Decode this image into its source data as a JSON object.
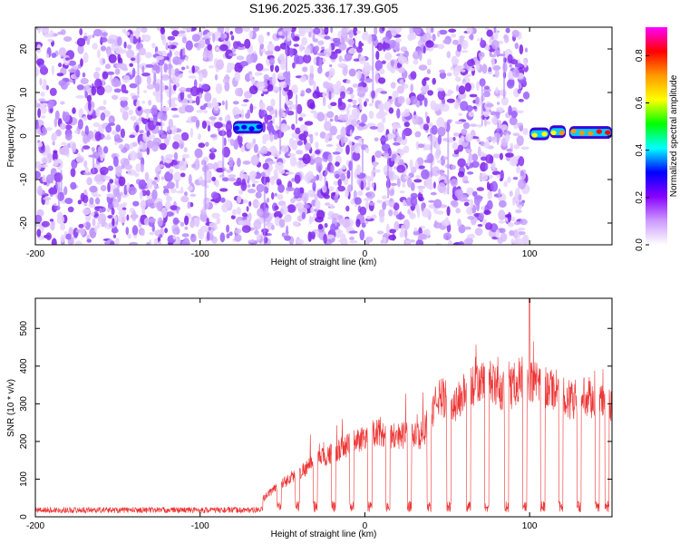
{
  "figure_title": "S196.2025.336.17.39.G05",
  "chart_data": [
    {
      "type": "heatmap",
      "name": "spectrogram",
      "xlabel": "Height of straight line (km)",
      "ylabel": "Frequency (Hz)",
      "xlim": [
        -200,
        150
      ],
      "ylim": [
        -25,
        25
      ],
      "xticks": [
        -200,
        -100,
        0,
        100
      ],
      "yticks": [
        -20,
        -10,
        0,
        10,
        20
      ],
      "colorbar": {
        "label": "Normalized spectral amplitude",
        "range": [
          0.0,
          0.92
        ],
        "ticks": [
          0.0,
          0.2,
          0.4,
          0.6,
          0.8
        ],
        "tick_labels": [
          "0.0",
          "0.2",
          "0.4",
          "0.6",
          "0.8"
        ],
        "colormap": [
          "#ffffff",
          "#cc99ff",
          "#8800ff",
          "#0000ff",
          "#00ffff",
          "#00ff00",
          "#ffff00",
          "#ff9900",
          "#ff0000",
          "#ff00ff"
        ]
      },
      "noise_region": {
        "x_range": [
          -200,
          98
        ],
        "freq_range": [
          -25,
          25
        ],
        "amplitude": "~0.05-0.1"
      },
      "signal_segments": [
        {
          "x_range": [
            -80,
            -62
          ],
          "freq_hz": 2,
          "amplitude": 0.35
        },
        {
          "x_range": [
            100,
            112
          ],
          "freq_hz": 0.5,
          "amplitude": 0.65
        },
        {
          "x_range": [
            112,
            122
          ],
          "freq_hz": 1,
          "amplitude": 0.7
        },
        {
          "x_range": [
            124,
            150
          ],
          "freq_hz": 0.8,
          "amplitude": 0.8
        }
      ]
    },
    {
      "type": "line",
      "name": "snr",
      "xlabel": "Height of straight line (km)",
      "ylabel": "SNR (10 * v/v)",
      "xlim": [
        -200,
        150
      ],
      "ylim": [
        0,
        580
      ],
      "xticks": [
        -200,
        -100,
        0,
        100
      ],
      "yticks": [
        0,
        100,
        200,
        300,
        400,
        500
      ],
      "series_color": "#ee3333",
      "baseline_region": {
        "x_range": [
          -200,
          -62
        ],
        "mean": 18,
        "spread": 8
      },
      "envelope": [
        {
          "x": -62,
          "y": 50
        },
        {
          "x": -55,
          "y": 80
        },
        {
          "x": -45,
          "y": 110
        },
        {
          "x": -35,
          "y": 140
        },
        {
          "x": -25,
          "y": 170
        },
        {
          "x": -15,
          "y": 190
        },
        {
          "x": -5,
          "y": 215
        },
        {
          "x": 5,
          "y": 240
        },
        {
          "x": 15,
          "y": 230
        },
        {
          "x": 25,
          "y": 230
        },
        {
          "x": 35,
          "y": 230
        },
        {
          "x": 45,
          "y": 340
        },
        {
          "x": 55,
          "y": 320
        },
        {
          "x": 65,
          "y": 370
        },
        {
          "x": 75,
          "y": 380
        },
        {
          "x": 85,
          "y": 350
        },
        {
          "x": 95,
          "y": 390
        },
        {
          "x": 105,
          "y": 370
        },
        {
          "x": 115,
          "y": 360
        },
        {
          "x": 125,
          "y": 330
        },
        {
          "x": 135,
          "y": 340
        },
        {
          "x": 145,
          "y": 320
        },
        {
          "x": 150,
          "y": 310
        }
      ],
      "dropouts_x": [
        -52,
        -41,
        -30,
        -19,
        -8,
        3,
        14,
        27,
        39,
        51,
        63,
        74,
        86,
        97,
        108,
        119,
        130,
        141,
        147
      ],
      "dropout_level": 30,
      "peak": {
        "x": 100,
        "y": 580
      }
    }
  ]
}
